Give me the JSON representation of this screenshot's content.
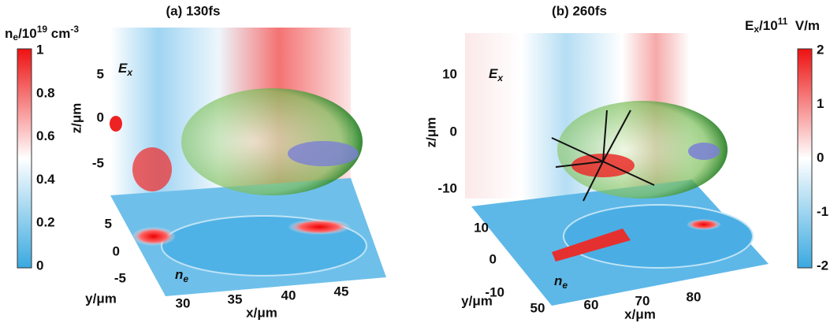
{
  "colorbar_left": {
    "label": [
      "n",
      "e",
      "/10",
      "19",
      " cm",
      "-3"
    ],
    "ticks": [
      "1",
      "0.8",
      "0.6",
      "0.4",
      "0.2",
      "0"
    ]
  },
  "colorbar_right": {
    "label": [
      "E",
      "x",
      "/10",
      "11",
      "  V/m"
    ],
    "ticks": [
      "2",
      "1",
      "0",
      "-1",
      "-2"
    ]
  },
  "panels": [
    {
      "title": "(a) 130fs",
      "field_label": [
        "E",
        "x"
      ],
      "density_label": [
        "n",
        "e"
      ],
      "z_label": "z/μm",
      "z_ticks": [
        "5",
        "0",
        "-5"
      ],
      "y_label": "y/μm",
      "y_ticks": [
        "5",
        "0",
        "-5"
      ],
      "x_label": "x/μm",
      "x_ticks": [
        "30",
        "35",
        "40",
        "45"
      ]
    },
    {
      "title": "(b) 260fs",
      "field_label": [
        "E",
        "x"
      ],
      "density_label": [
        "n",
        "e"
      ],
      "z_label": "z/μm",
      "z_ticks": [
        "10",
        "0",
        "-10"
      ],
      "y_label": "y/μm",
      "y_ticks": [
        "10",
        "0",
        "-10"
      ],
      "x_label": "x/μm",
      "x_ticks": [
        "50",
        "60",
        "70",
        "80"
      ]
    }
  ]
}
